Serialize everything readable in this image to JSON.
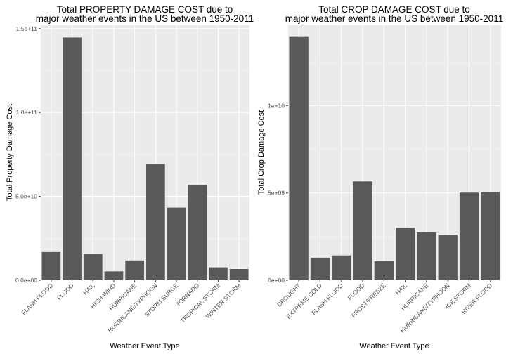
{
  "chart_data": [
    {
      "type": "bar",
      "title_lines": [
        "Total PROPERTY DAMAGE COST due to",
        "major weather events in the US between 1950-2011"
      ],
      "xlabel": "Weather Event Type",
      "ylabel": "Total Property Damage Cost",
      "categories": [
        "FLASH FLOOD",
        "FLOOD",
        "HAIL",
        "HIGH WIND",
        "HURRICANE",
        "HURRICANE/TYPHOON",
        "STORM SURGE",
        "TORNADO",
        "TROPICAL STORM",
        "WINTER STORM"
      ],
      "values": [
        16800000000,
        144700000000,
        15700000000,
        5300000000,
        11800000000,
        69300000000,
        43300000000,
        56900000000,
        7700000000,
        6700000000
      ],
      "yticks": [
        0,
        50000000000,
        100000000000,
        150000000000
      ],
      "ytick_labels": [
        "0.0e+00",
        "5.0e+10",
        "1.0e+11",
        "1.5e+11"
      ],
      "ylim": [
        0,
        152000000000
      ],
      "grid": true,
      "bar_color": "#595959",
      "panel_color": "#ebebeb"
    },
    {
      "type": "bar",
      "title_lines": [
        "Total CROP DAMAGE COST due to",
        "major weather events in the US between 1950-2011"
      ],
      "xlabel": "Weather Event Type",
      "ylabel": "Total Crop Damage Cost",
      "categories": [
        "DROUGHT",
        "EXTREME COLD",
        "FLASH FLOOD",
        "FLOOD",
        "FROST/FREEZE",
        "HAIL",
        "HURRICANE",
        "HURRICANE/TYPHOON",
        "ICE STORM",
        "RIVER FLOOD"
      ],
      "values": [
        13970000000,
        1290000000,
        1420000000,
        5660000000,
        1090000000,
        3000000000,
        2740000000,
        2610000000,
        5020000000,
        5030000000
      ],
      "yticks": [
        0,
        5000000000,
        10000000000
      ],
      "ytick_labels": [
        "0e+00",
        "5e+09",
        "1e+10"
      ],
      "ylim": [
        0,
        14600000000
      ],
      "grid": true,
      "bar_color": "#595959",
      "panel_color": "#ebebeb"
    }
  ]
}
